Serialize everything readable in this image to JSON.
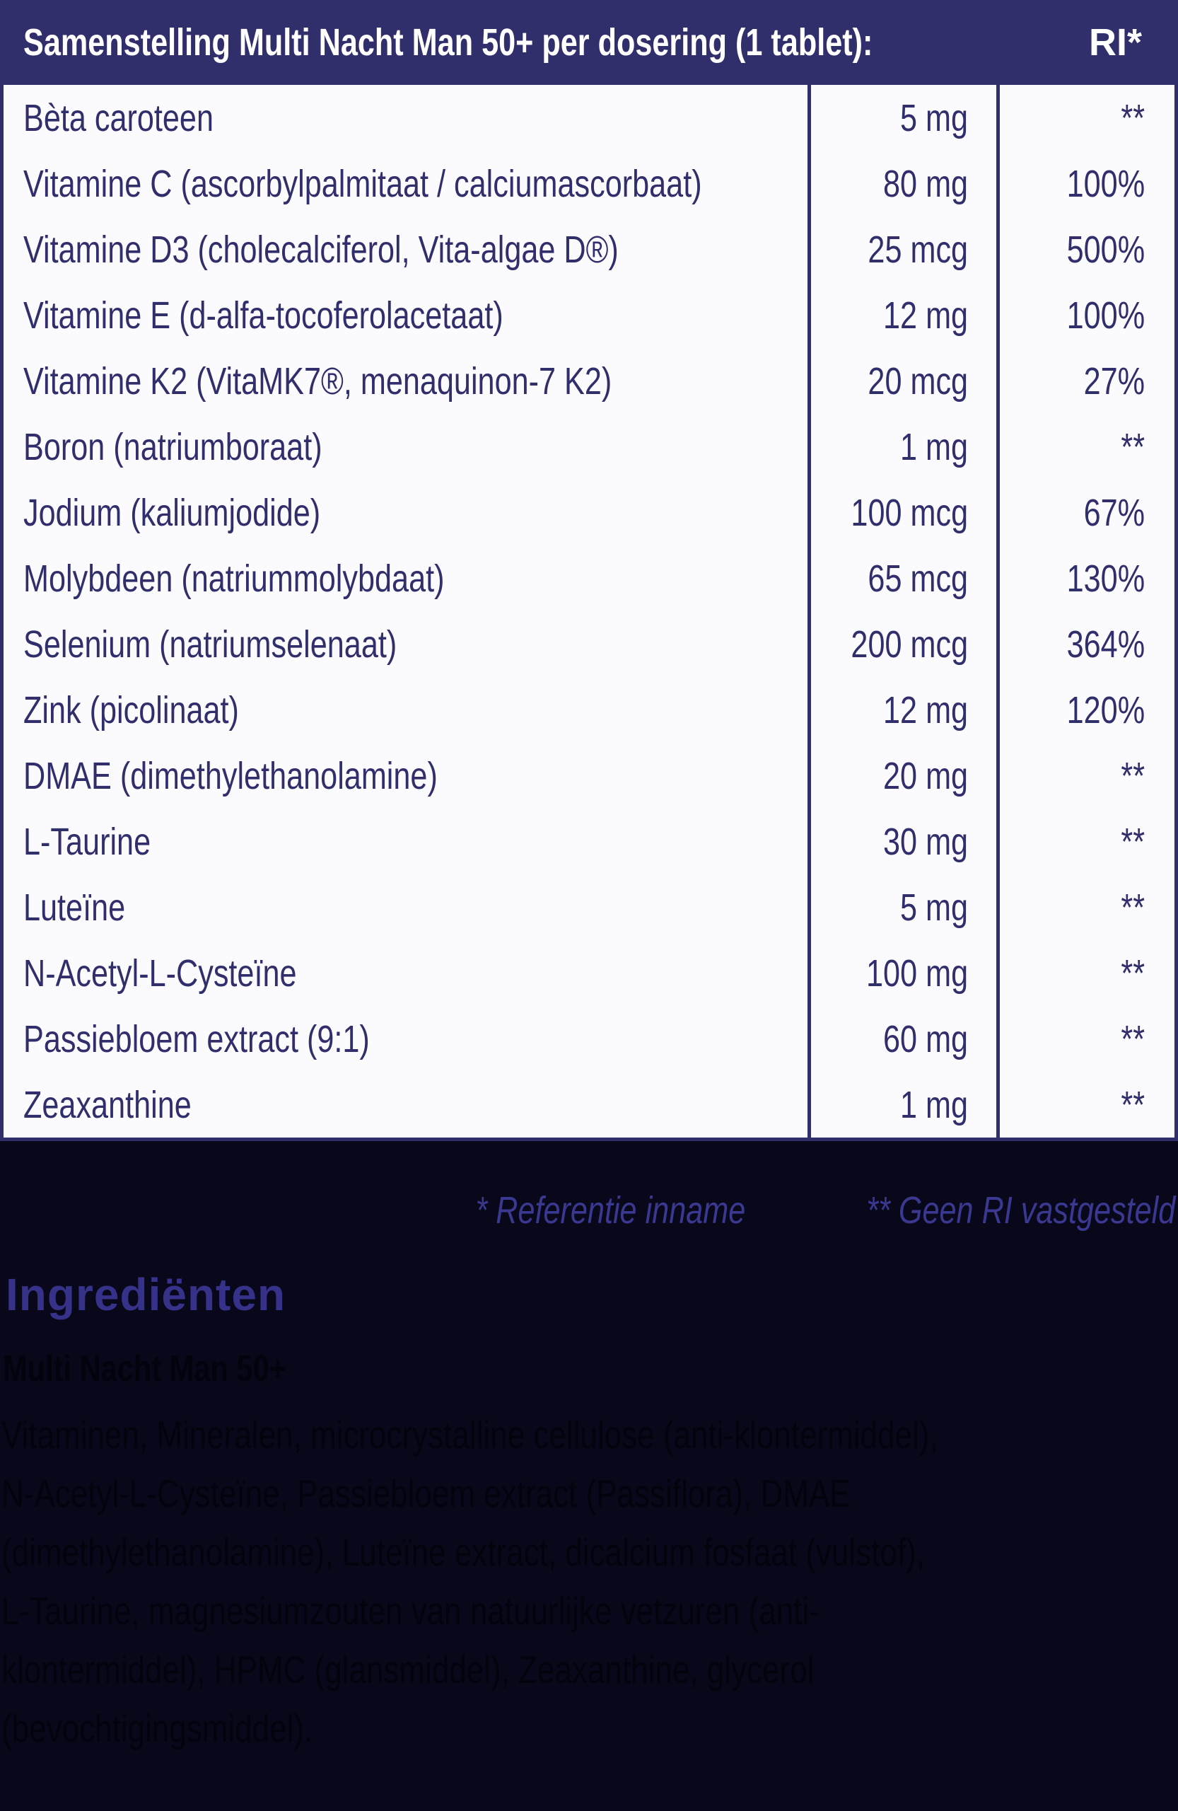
{
  "colors": {
    "navy": "#312e6c",
    "rowbg": "#fbfbfd",
    "darkbg": "#08081a",
    "footnote": "#3a3890",
    "heading": "#363289",
    "inktext": "#03030e",
    "headertext": "#ffffff"
  },
  "table": {
    "title": "Samenstelling Multi Nacht Man 50+ per dosering (1 tablet):",
    "ri_header": "RI*",
    "rows": [
      {
        "name": "Bèta caroteen",
        "amount": "5 mg",
        "ri": "**"
      },
      {
        "name": "Vitamine C (ascorbylpalmitaat / calciumascorbaat)",
        "amount": "80 mg",
        "ri": "100%"
      },
      {
        "name": "Vitamine D3 (cholecalciferol, Vita-algae D®)",
        "amount": "25 mcg",
        "ri": "500%"
      },
      {
        "name": "Vitamine E (d-alfa-tocoferolacetaat)",
        "amount": "12 mg",
        "ri": "100%"
      },
      {
        "name": "Vitamine K2 (VitaMK7®, menaquinon-7 K2)",
        "amount": "20 mcg",
        "ri": "27%"
      },
      {
        "name": "Boron (natriumboraat)",
        "amount": "1 mg",
        "ri": "**"
      },
      {
        "name": "Jodium (kaliumjodide)",
        "amount": "100 mcg",
        "ri": "67%"
      },
      {
        "name": "Molybdeen (natriummolybdaat)",
        "amount": "65 mcg",
        "ri": "130%"
      },
      {
        "name": "Selenium (natriumselenaat)",
        "amount": "200 mcg",
        "ri": "364%"
      },
      {
        "name": "Zink (picolinaat)",
        "amount": "12 mg",
        "ri": "120%"
      },
      {
        "name": "DMAE (dimethylethanolamine)",
        "amount": "20 mg",
        "ri": "**"
      },
      {
        "name": "L-Taurine",
        "amount": "30 mg",
        "ri": "**"
      },
      {
        "name": "Luteïne",
        "amount": "5 mg",
        "ri": "**"
      },
      {
        "name": "N-Acetyl-L-Cysteïne",
        "amount": "100 mg",
        "ri": "**"
      },
      {
        "name": "Passiebloem extract (9:1)",
        "amount": "60 mg",
        "ri": "**"
      },
      {
        "name": "Zeaxanthine",
        "amount": "1 mg",
        "ri": "**"
      }
    ]
  },
  "footnotes": {
    "reference": "* Referentie inname",
    "no_ri": "** Geen RI vastgesteld"
  },
  "ingredients": {
    "heading": "Ingrediënten",
    "product": "Multi Nacht Man 50+",
    "lines": [
      {
        "text": "Vitaminen, Mineralen, microcrystalline cellulose (anti-klontermiddel),"
      },
      {
        "text": "N-Acetyl-L-Cysteïne, Passiebloem extract (Passiflora), DMAE"
      },
      {
        "text": "(dimethylethanolamine), Luteïne extract, dicalcium fosfaat (vulstof),"
      },
      {
        "text": "L-Taurine, magnesiumzouten van natuurlijke vetzuren (anti-"
      },
      {
        "text": "klontermiddel), HPMC (glansmiddel), Zeaxanthine, glycerol"
      },
      {
        "text": "(bevochtigingsmiddel)."
      }
    ]
  }
}
